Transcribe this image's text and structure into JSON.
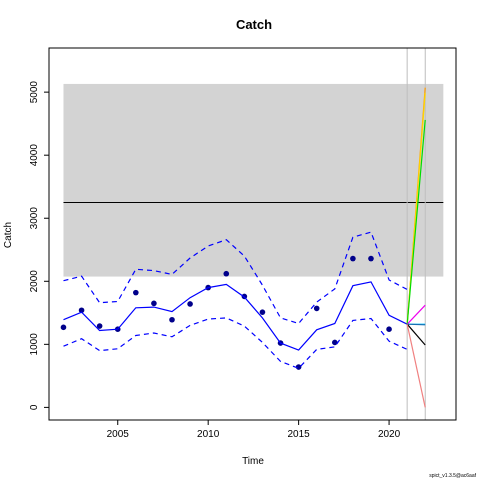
{
  "chart_data": {
    "type": "line",
    "title": "Catch",
    "xlabel": "Time",
    "ylabel": "Catch",
    "footnote": "spict_v1.3.5@ac6aaf",
    "xlim": [
      2001.2,
      2023.7
    ],
    "ylim": [
      -200,
      5700
    ],
    "x_ticks": [
      2005,
      2010,
      2015,
      2020
    ],
    "y_ticks": [
      0,
      1000,
      2000,
      3000,
      4000,
      5000
    ],
    "grid": false,
    "legend": "none",
    "msy_band": {
      "x": [
        2002,
        2023
      ],
      "lower": 2075,
      "upper": 5130,
      "color": "#d3d3d3"
    },
    "msy_line": {
      "x": [
        2002,
        2023
      ],
      "y": 3250,
      "color": "#000000"
    },
    "vlines": [
      {
        "x": 2021,
        "color": "#bebebe"
      },
      {
        "x": 2022,
        "color": "#bebebe"
      }
    ],
    "series": [
      {
        "type": "scatter",
        "color": "#00008b",
        "x": [
          2002,
          2003,
          2004,
          2005,
          2006,
          2007,
          2008,
          2009,
          2010,
          2011,
          2012,
          2013,
          2014,
          2015,
          2016,
          2017,
          2018,
          2019,
          2020
        ],
        "values": [
          1270,
          1540,
          1290,
          1240,
          1820,
          1650,
          1390,
          1640,
          1900,
          2120,
          1760,
          1510,
          1020,
          640,
          1570,
          1030,
          2360,
          2360,
          1240
        ]
      },
      {
        "type": "line",
        "color": "#0000ff",
        "x": [
          2002,
          2003,
          2004,
          2005,
          2006,
          2007,
          2008,
          2009,
          2010,
          2011,
          2012,
          2013,
          2014,
          2015,
          2016,
          2017,
          2018,
          2019,
          2020,
          2021
        ],
        "values": [
          1390,
          1510,
          1220,
          1240,
          1580,
          1590,
          1520,
          1740,
          1900,
          1950,
          1750,
          1420,
          1020,
          910,
          1230,
          1330,
          1930,
          1990,
          1460,
          1320
        ]
      },
      {
        "type": "line",
        "dash": true,
        "color": "#0000ff",
        "x": [
          2002,
          2003,
          2004,
          2005,
          2006,
          2007,
          2008,
          2009,
          2010,
          2011,
          2012,
          2013,
          2014,
          2015,
          2016,
          2017,
          2018,
          2019,
          2020,
          2021
        ],
        "values": [
          2010,
          2080,
          1660,
          1680,
          2190,
          2170,
          2110,
          2370,
          2560,
          2660,
          2400,
          1940,
          1420,
          1330,
          1670,
          1880,
          2700,
          2780,
          2020,
          1870
        ]
      },
      {
        "type": "line",
        "dash": true,
        "color": "#0000ff",
        "x": [
          2002,
          2003,
          2004,
          2005,
          2006,
          2007,
          2008,
          2009,
          2010,
          2011,
          2012,
          2013,
          2014,
          2015,
          2016,
          2017,
          2018,
          2019,
          2020,
          2021
        ],
        "values": [
          970,
          1090,
          900,
          930,
          1140,
          1180,
          1120,
          1300,
          1400,
          1420,
          1290,
          1030,
          730,
          620,
          920,
          960,
          1380,
          1410,
          1050,
          920
        ]
      },
      {
        "type": "line",
        "color": "#ff9900",
        "x": [
          2021,
          2022
        ],
        "values": [
          1320,
          5070
        ]
      },
      {
        "type": "line",
        "color": "#ffd700",
        "x": [
          2021,
          2022
        ],
        "values": [
          1320,
          4990
        ]
      },
      {
        "type": "line",
        "color": "#00dd00",
        "x": [
          2021,
          2022
        ],
        "values": [
          1320,
          4560
        ]
      },
      {
        "type": "line",
        "color": "#ee00ee",
        "x": [
          2021,
          2022
        ],
        "values": [
          1320,
          1620
        ]
      },
      {
        "type": "line",
        "color": "#00bfff",
        "x": [
          2021,
          2022
        ],
        "values": [
          1320,
          1320
        ]
      },
      {
        "type": "line",
        "color": "#1a6fb0",
        "x": [
          2021,
          2022
        ],
        "values": [
          1320,
          1310
        ]
      },
      {
        "type": "line",
        "color": "#000000",
        "x": [
          2021,
          2022
        ],
        "values": [
          1320,
          990
        ]
      },
      {
        "type": "line",
        "color": "#f08080",
        "x": [
          2021,
          2022
        ],
        "values": [
          1320,
          0
        ]
      }
    ]
  }
}
